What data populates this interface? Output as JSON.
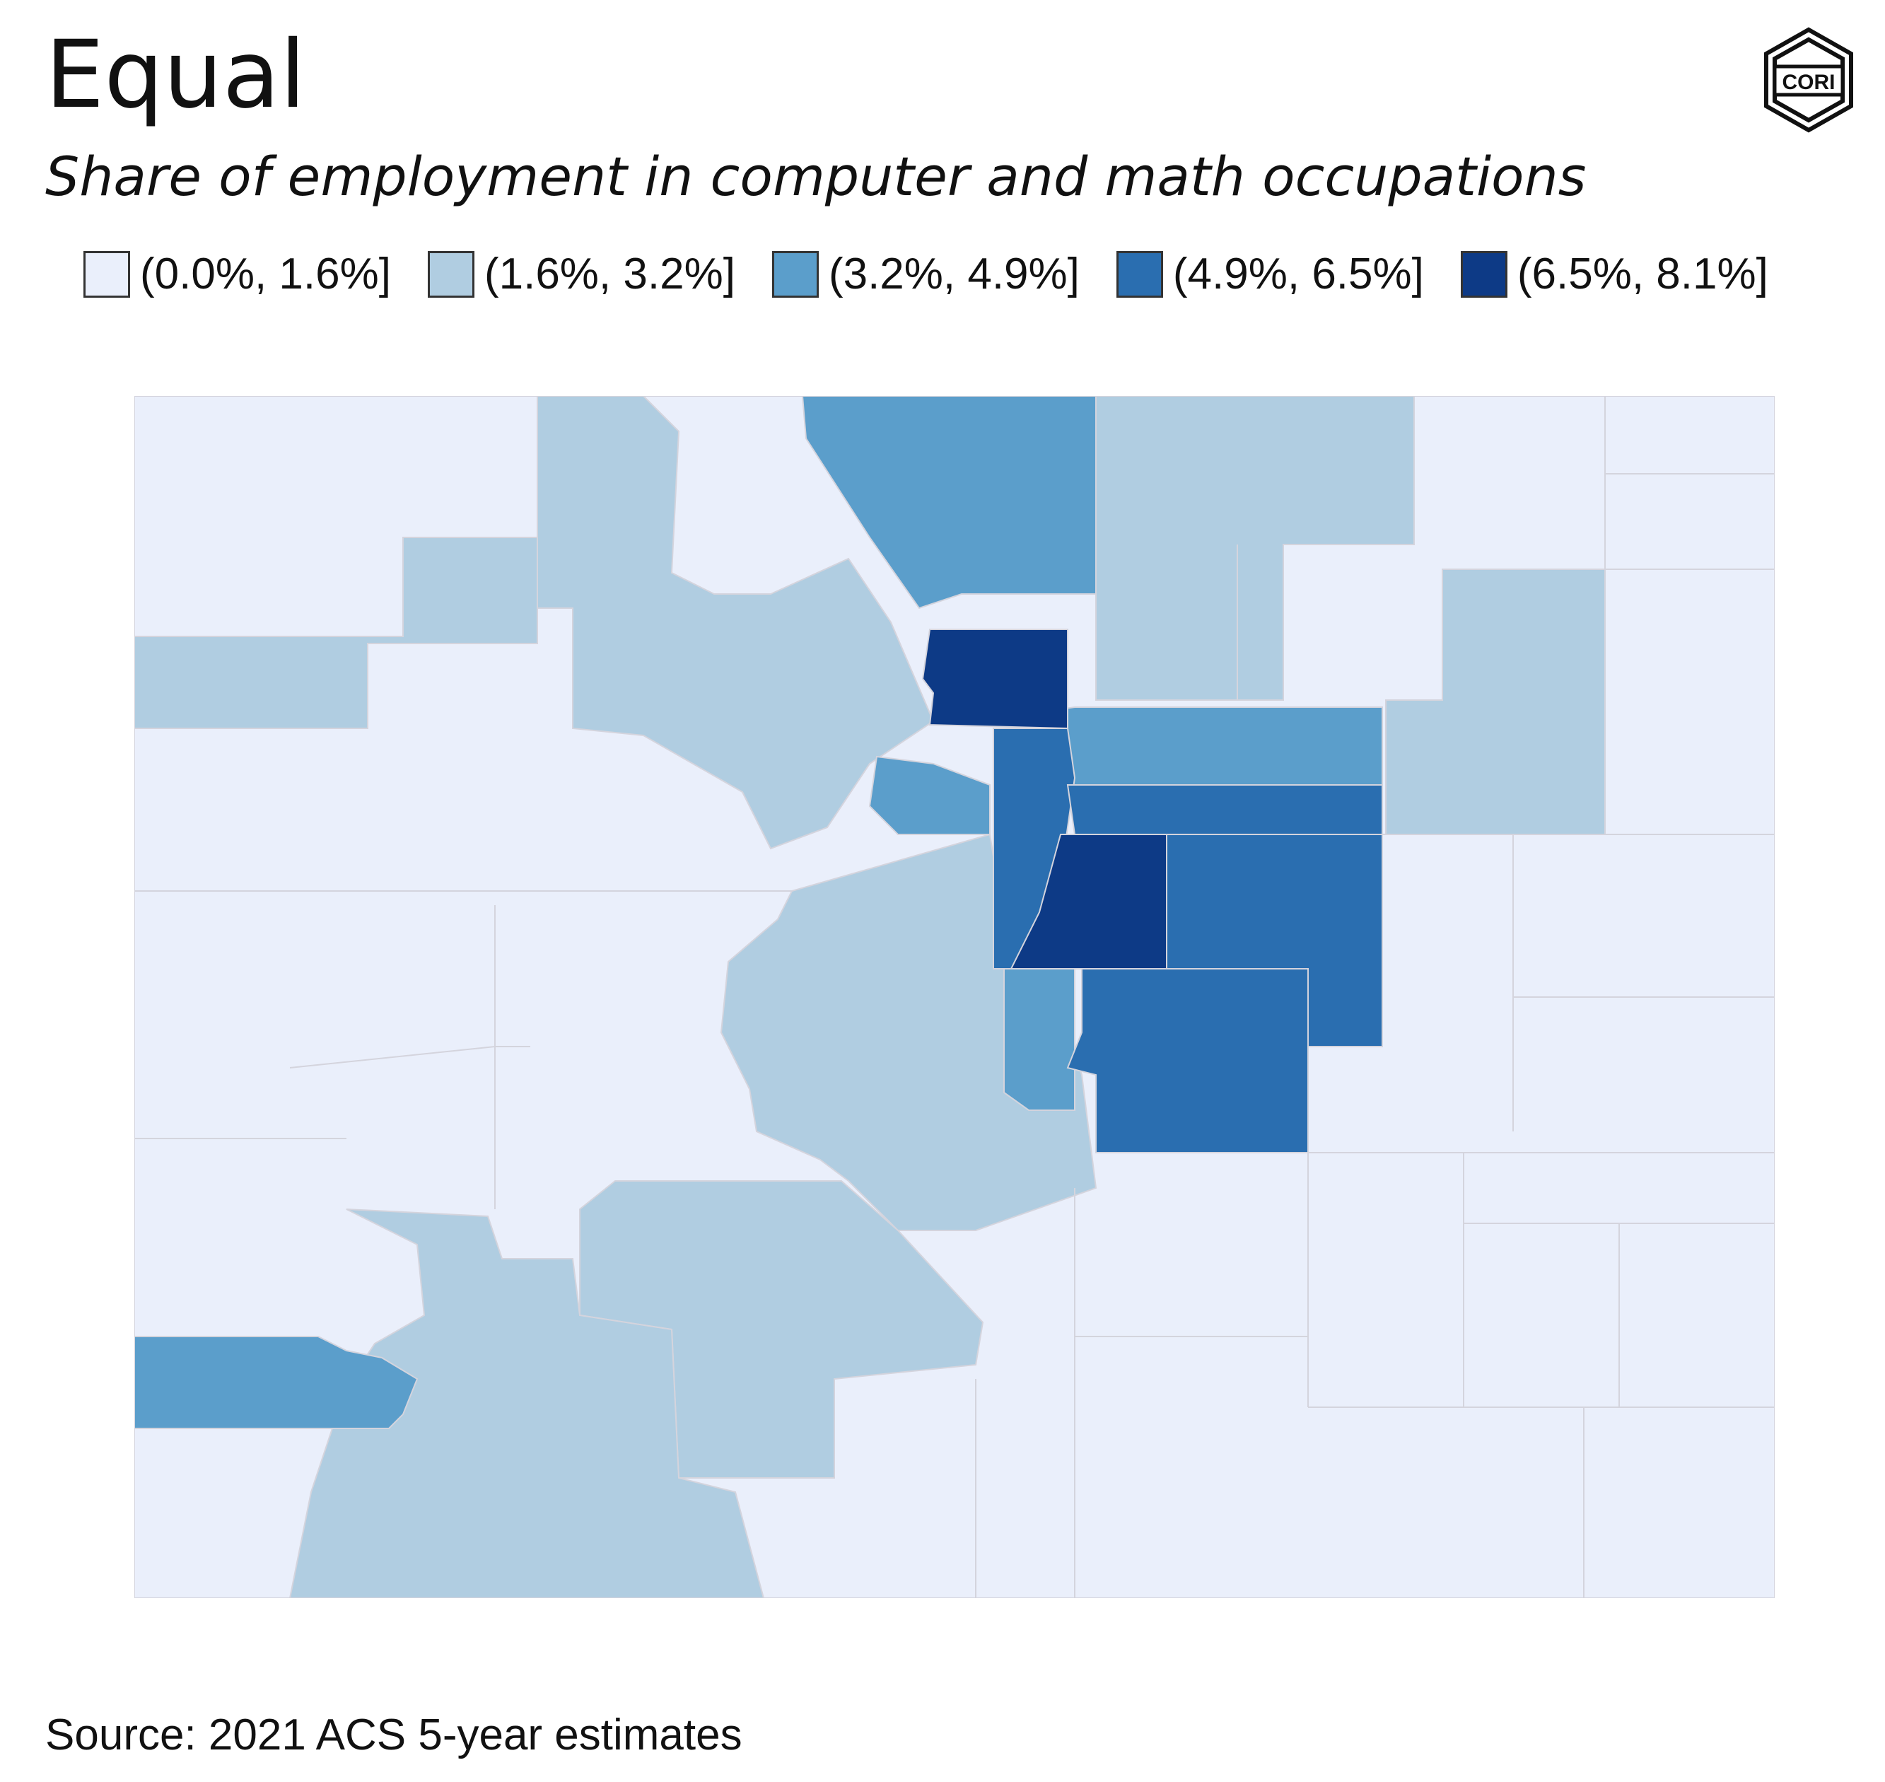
{
  "title": "Equal",
  "subtitle": "Share of employment in computer and math occupations",
  "logo": {
    "text": "CORI",
    "icon": "cori-logo-icon"
  },
  "legend": [
    {
      "label": "(0.0%, 1.6%]",
      "color": "#eaeffb"
    },
    {
      "label": "(1.6%, 3.2%]",
      "color": "#b0cde1"
    },
    {
      "label": "(3.2%, 4.9%]",
      "color": "#5b9ecb"
    },
    {
      "label": "(4.9%, 6.5%]",
      "color": "#2a6eb0"
    },
    {
      "label": "(6.5%, 8.1%]",
      "color": "#0d3a86"
    }
  ],
  "map": {
    "region": "Colorado counties",
    "bins": 5
  },
  "source": "Source: 2021 ACS 5-year estimates"
}
